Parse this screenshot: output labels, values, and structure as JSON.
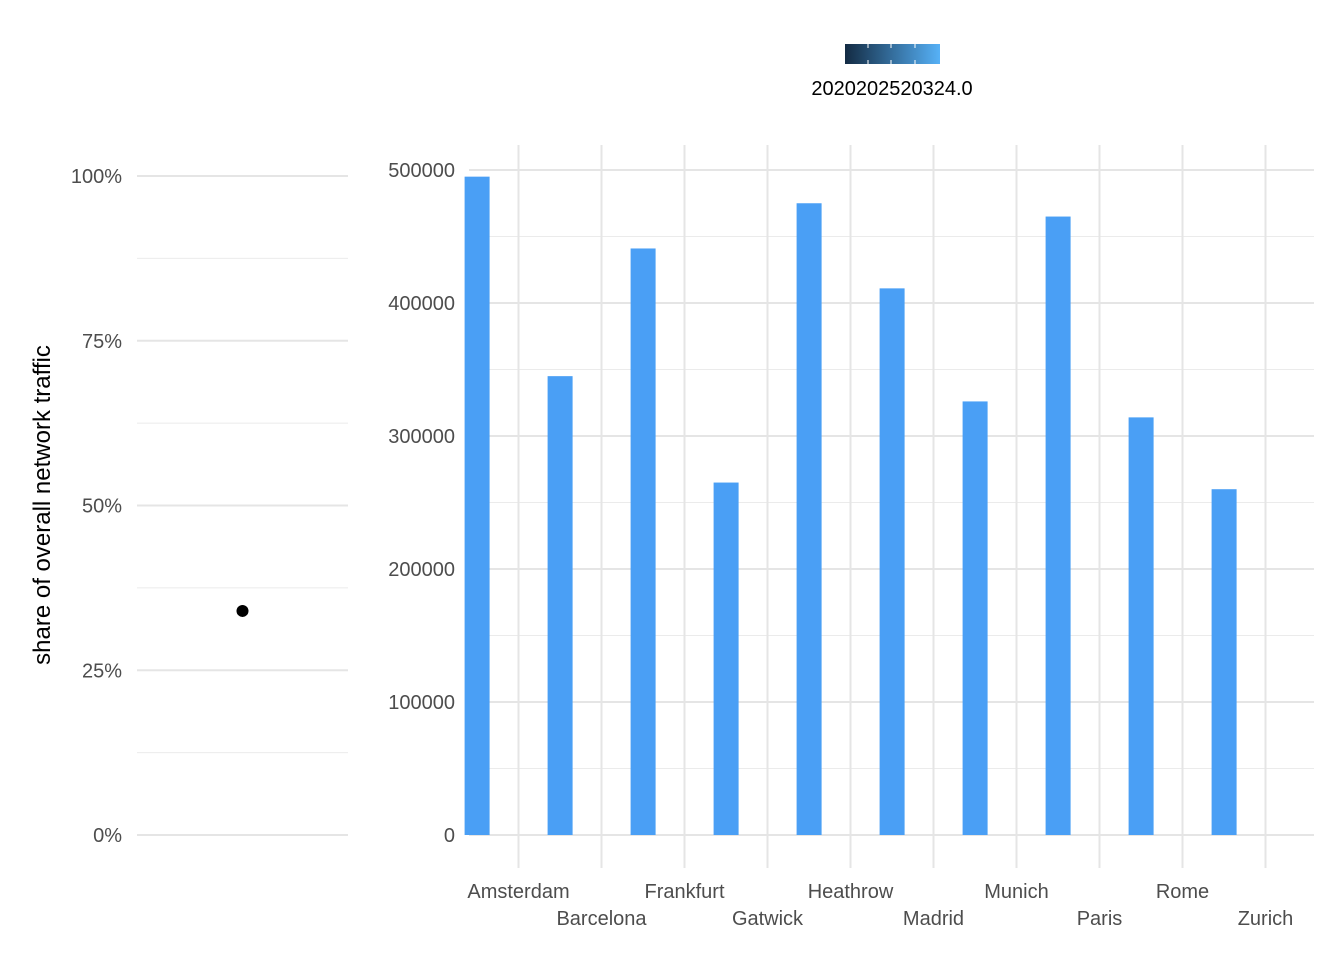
{
  "chart_data": [
    {
      "type": "scatter",
      "ylabel": "share of overall network traffic",
      "ylim": [
        0,
        1
      ],
      "y_ticks": [
        "0%",
        "25%",
        "50%",
        "75%",
        "100%"
      ],
      "y_tick_values": [
        0,
        0.25,
        0.5,
        0.75,
        1
      ],
      "grid": true,
      "points": [
        {
          "y": 0.34
        }
      ],
      "point_color": "#000000"
    },
    {
      "type": "bar",
      "categories": [
        "Amsterdam",
        "Barcelona",
        "Frankfurt",
        "Gatwick",
        "Heathrow",
        "Madrid",
        "Munich",
        "Paris",
        "Rome",
        "Zurich"
      ],
      "values": [
        495000,
        345000,
        441000,
        265000,
        475000,
        411000,
        326000,
        465000,
        314000,
        260000
      ],
      "ylim": [
        0,
        500000
      ],
      "y_ticks": [
        "0",
        "100000",
        "200000",
        "300000",
        "400000",
        "500000"
      ],
      "y_tick_values": [
        0,
        100000,
        200000,
        300000,
        400000,
        500000
      ],
      "grid": true,
      "bar_color": "#4a9ff5"
    }
  ],
  "legend": {
    "placement": "top",
    "gradient_colors": [
      "#132b43",
      "#56b1f7"
    ],
    "label_text": "2020202520324.0"
  }
}
